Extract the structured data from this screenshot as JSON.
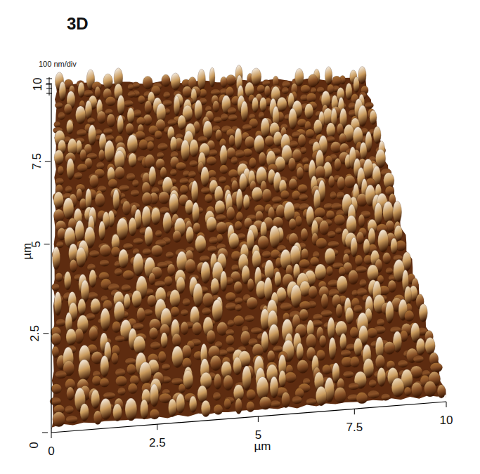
{
  "chart_data": {
    "type": "surface",
    "title": "3D",
    "x_label": "µm",
    "y_label": "µm",
    "xlim": [
      0,
      10
    ],
    "ylim": [
      0,
      10
    ],
    "xticks": [
      0,
      2.5,
      5,
      7.5,
      10
    ],
    "yticks": [
      0,
      2.5,
      5,
      7.5,
      10
    ],
    "annotations": [
      "100 nm/div"
    ]
  }
}
